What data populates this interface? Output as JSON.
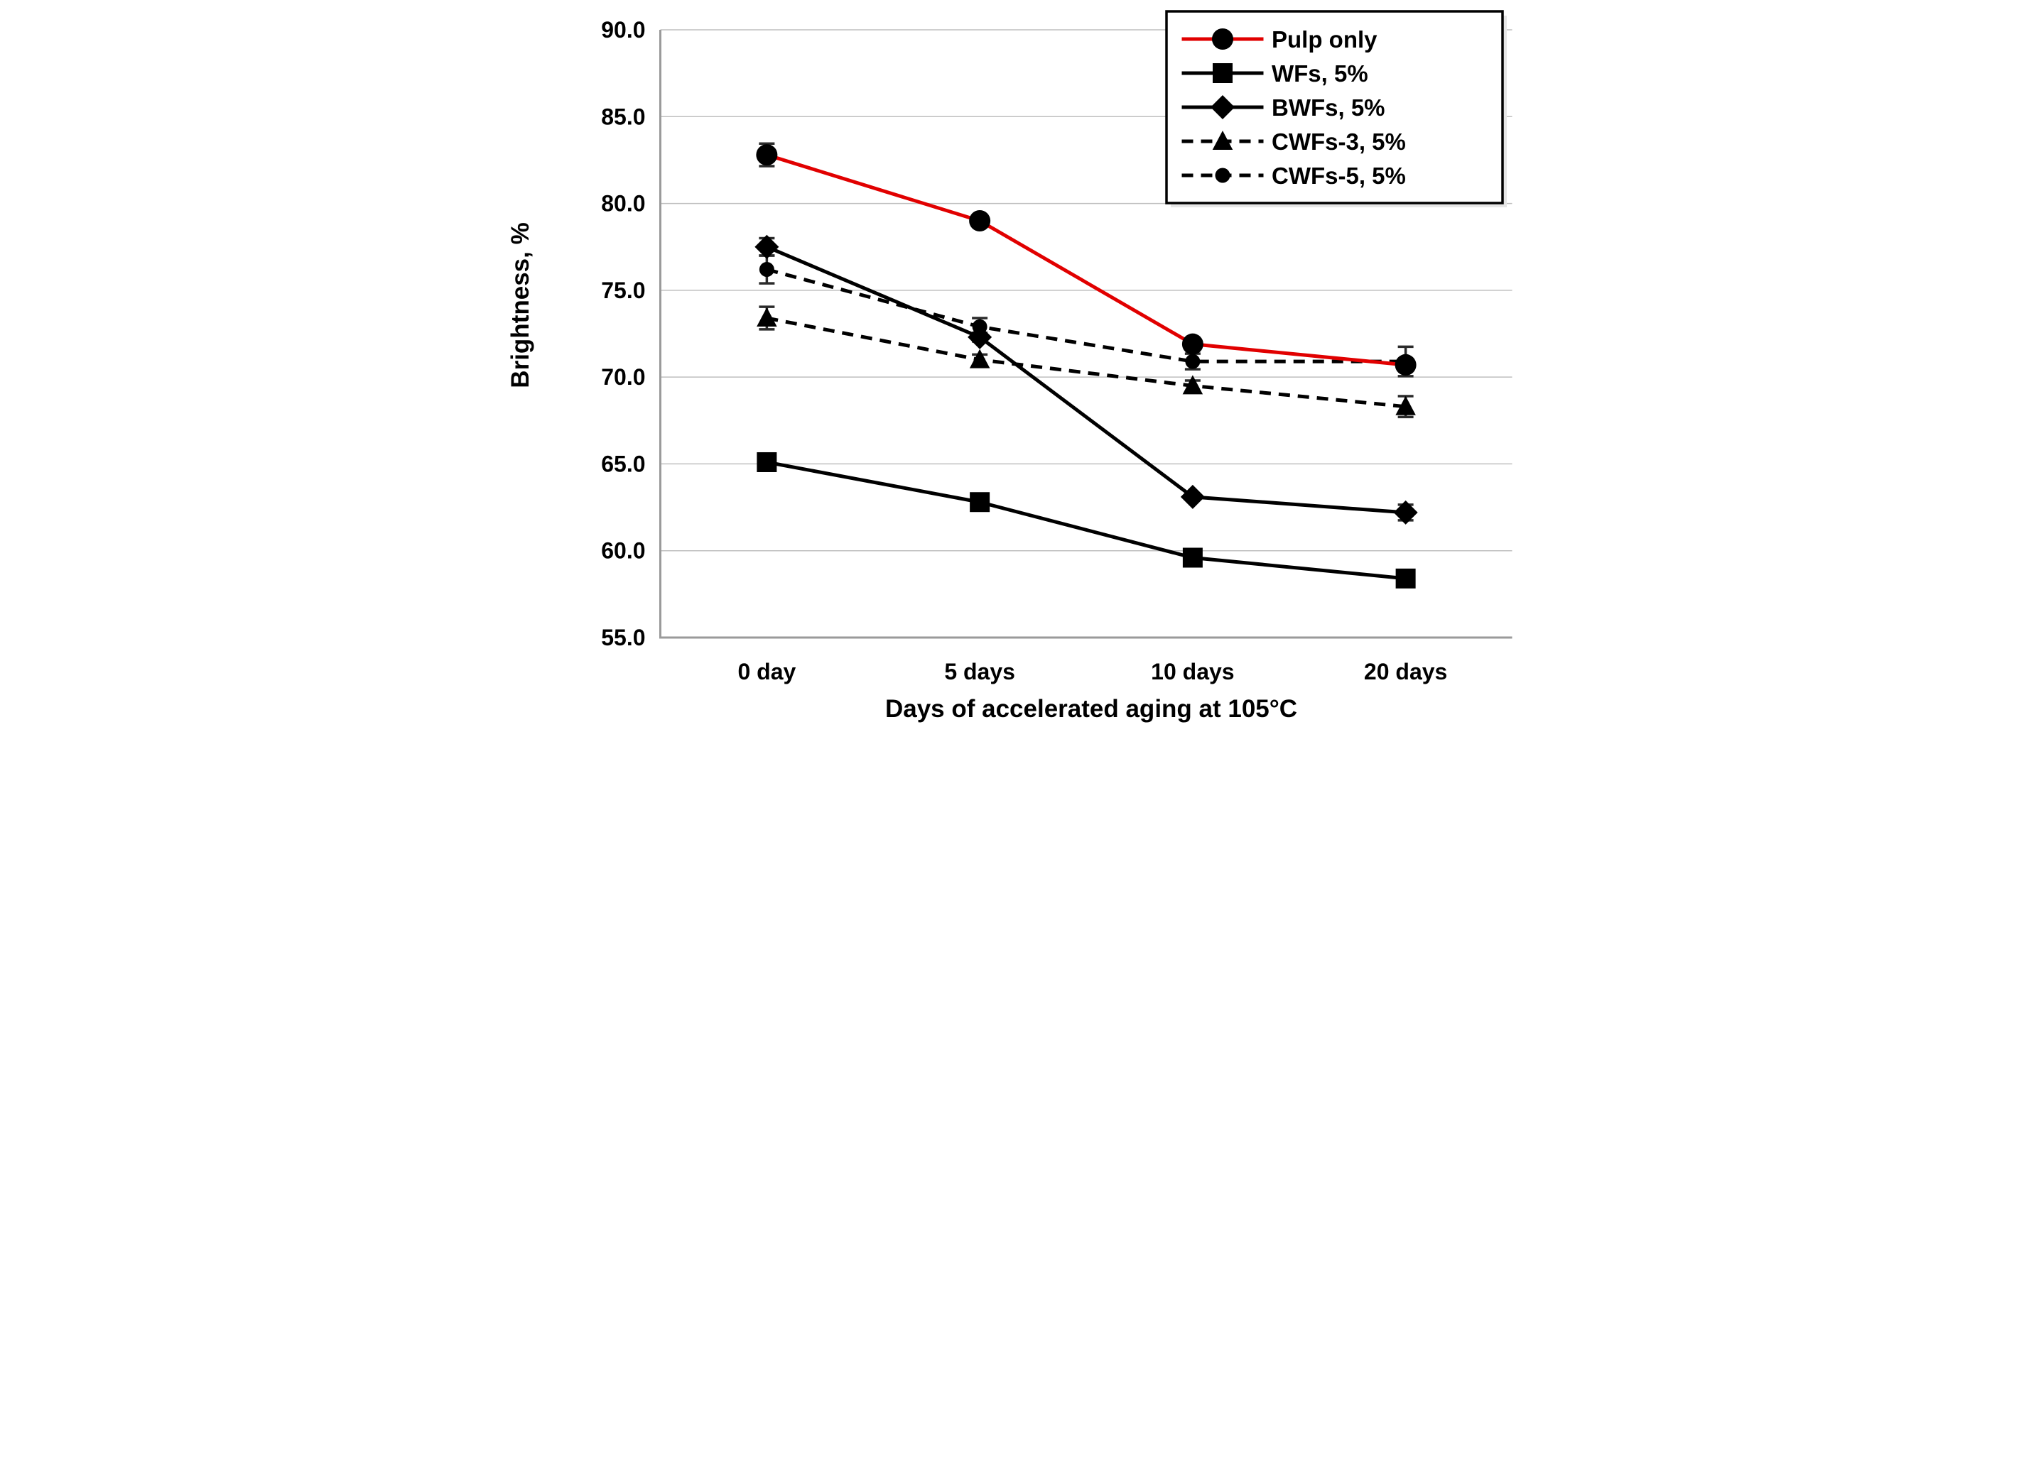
{
  "chart_data": {
    "type": "line",
    "title": "",
    "xlabel": "Days of accelerated aging at 105°C",
    "ylabel": "Brightness, %",
    "categories": [
      "0 day",
      "5 days",
      "10 days",
      "20 days"
    ],
    "y_axis": {
      "min": 55,
      "max": 90,
      "step": 5,
      "tick_labels": [
        "55.0",
        "60.0",
        "65.0",
        "70.0",
        "75.0",
        "80.0",
        "85.0",
        "90.0"
      ]
    },
    "grid": true,
    "legend_position": "top-right",
    "series": [
      {
        "name": "Pulp only",
        "values": [
          82.8,
          79.0,
          71.9,
          70.7
        ],
        "errors": [
          0.65,
          0,
          0,
          0
        ],
        "line_color": "#e10000",
        "line_style": "solid",
        "marker": "circle",
        "marker_color": "#000000",
        "marker_size": 30
      },
      {
        "name": "WFs, 5%",
        "values": [
          65.1,
          62.8,
          59.6,
          58.4
        ],
        "errors": [
          0,
          0,
          0,
          0
        ],
        "line_color": "#000000",
        "line_style": "solid",
        "marker": "square",
        "marker_color": "#000000",
        "marker_size": 28
      },
      {
        "name": "BWFs, 5%",
        "values": [
          77.5,
          72.3,
          63.1,
          62.2
        ],
        "errors": [
          0.5,
          0.25,
          0,
          0.45
        ],
        "line_color": "#000000",
        "line_style": "solid",
        "marker": "diamond",
        "marker_color": "#000000",
        "marker_size": 34
      },
      {
        "name": "CWFs-3, 5%",
        "values": [
          73.4,
          71.0,
          69.5,
          68.3
        ],
        "errors": [
          0.65,
          0.3,
          0.3,
          0.6
        ],
        "line_color": "#000000",
        "line_style": "dashed",
        "marker": "triangle",
        "marker_color": "#000000",
        "marker_size": 30
      },
      {
        "name": "CWFs-5, 5%",
        "values": [
          76.2,
          72.9,
          70.9,
          70.9
        ],
        "errors": [
          0.8,
          0.5,
          0.45,
          0.85
        ],
        "line_color": "#000000",
        "line_style": "dashed",
        "marker": "circle",
        "marker_color": "#000000",
        "marker_size": 21
      }
    ],
    "colors": {
      "accent_red": "#e10000",
      "series_black": "#000000",
      "gridline": "#bfbfbf",
      "axis_line": "#9a9a9a",
      "error_bar": "#2b2b2b",
      "text": "#000000",
      "legend_border": "#000000",
      "legend_bg": "#ffffff",
      "legend_shadow": "#e6e6e6",
      "background": "#ffffff"
    }
  }
}
